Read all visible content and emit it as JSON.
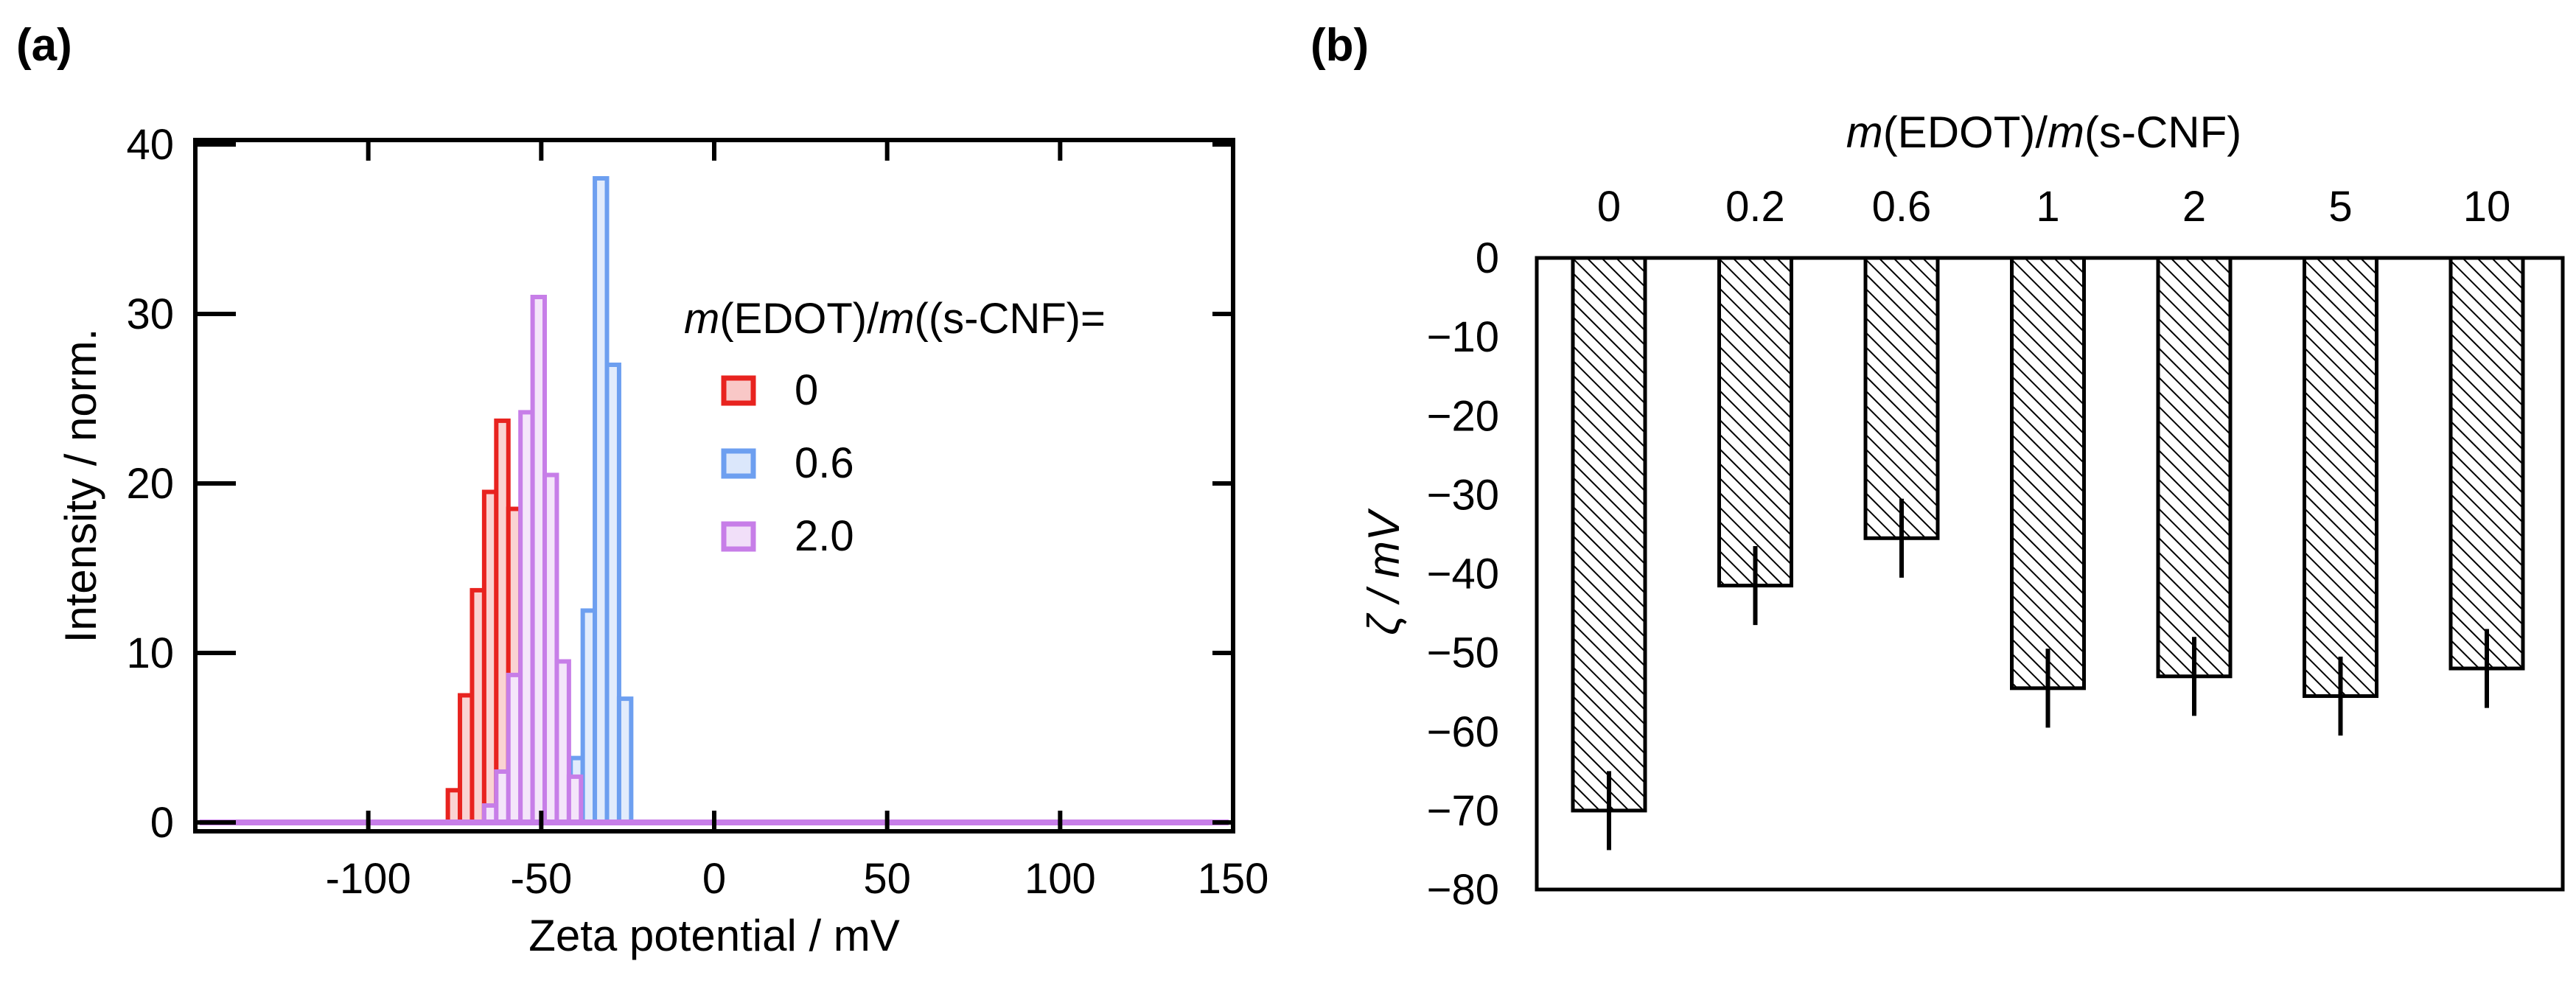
{
  "chart_data": [
    {
      "panel": "(a)",
      "type": "bar",
      "subtype": "histogram",
      "xlabel": "Zeta potential / mV",
      "ylabel": "Intensity / norm.",
      "xlim": [
        -150,
        150
      ],
      "ylim": [
        0,
        40
      ],
      "xticks": [
        "-100",
        "-50",
        "0",
        "50",
        "100",
        "150"
      ],
      "yticks": [
        "0",
        "10",
        "20",
        "30",
        "40"
      ],
      "legend_title_parts": [
        "m",
        "(EDOT)/",
        "m",
        "((s-CNF)="
      ],
      "legend_position": "top-right",
      "bin_width": 3.5,
      "series": [
        {
          "name": "0",
          "color": "#e8231f",
          "x": [
            -77,
            -73.5,
            -70,
            -66.5,
            -63,
            -59.5
          ],
          "values": [
            1.9,
            7.5,
            13.7,
            19.5,
            23.7,
            18.5
          ]
        },
        {
          "name": "0.6",
          "color": "#6d9ff0",
          "x": [
            -45,
            -41.5,
            -38,
            -34.5,
            -31,
            -27.5
          ],
          "values": [
            0.5,
            3.8,
            12.5,
            38.0,
            27.0,
            7.3
          ]
        },
        {
          "name": "2.0",
          "color": "#c77ee8",
          "x": [
            -66.5,
            -63,
            -59.5,
            -56,
            -52.5,
            -49,
            -45.5,
            -42
          ],
          "values": [
            1.0,
            3.0,
            8.7,
            24.2,
            31.0,
            20.5,
            9.5,
            2.7
          ]
        }
      ]
    },
    {
      "panel": "(b)",
      "type": "bar",
      "title_parts": [
        "m",
        "(EDOT)/",
        "m",
        "(s-CNF)"
      ],
      "ylabel": "ζ / mV",
      "ylim": [
        -80,
        0
      ],
      "categories": [
        "0",
        "0.2",
        "0.6",
        "1",
        "2",
        "5",
        "10"
      ],
      "yticks": [
        "0",
        "−10",
        "−20",
        "−30",
        "−40",
        "−50",
        "−60",
        "−70",
        "−80"
      ],
      "values": [
        -70.0,
        -41.5,
        -35.5,
        -54.5,
        -53.0,
        -55.5,
        -52.0
      ],
      "errors": [
        5.0,
        5.0,
        5.0,
        5.0,
        5.0,
        5.0,
        5.0
      ],
      "bar_fill": "hatched"
    }
  ]
}
